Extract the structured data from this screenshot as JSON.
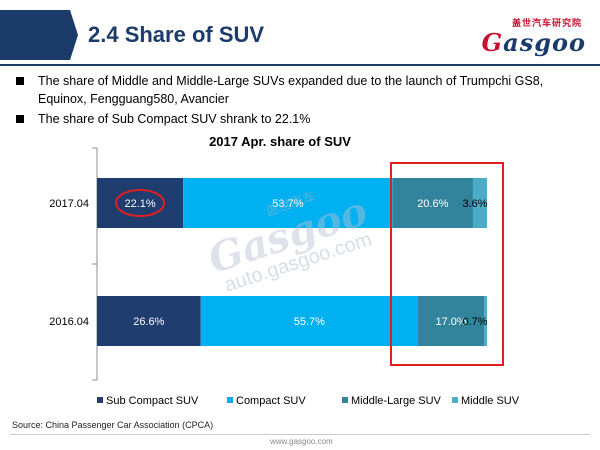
{
  "header": {
    "title": "2.4 Share of SUV",
    "logo_cn": "盖世汽车研究院",
    "logo_word_red": "G",
    "logo_word_rest": "asgoo"
  },
  "bullets": [
    "The share of Middle and Middle-Large SUVs expanded due to the launch of Trumpchi GS8, Equinox, Fengguang580, Avancier",
    "The share of Sub Compact SUV shrank to 22.1%"
  ],
  "watermark": {
    "brand": "Gasgoo",
    "cn": "盖世汽车",
    "url": "auto.gasgoo.com"
  },
  "source": "Source: China Passenger Car Association (CPCA)",
  "footer_url": "www.gasgoo.com",
  "colors": {
    "navy": "#1b3c6b",
    "brand_red": "#c8102e",
    "highlight_red": "#e0201e"
  },
  "chart_data": {
    "type": "bar",
    "orientation": "horizontal",
    "stacked": true,
    "title": "2017 Apr. share of SUV",
    "categories": [
      "2017.04",
      "2016.04"
    ],
    "xlim": [
      0,
      100
    ],
    "unit": "%",
    "grid": false,
    "legend_position": "bottom",
    "series": [
      {
        "name": "Sub Compact SUV",
        "values": [
          22.1,
          26.6
        ],
        "labels": [
          "22.1%",
          "26.6%"
        ],
        "color": "#1f3d6e",
        "label_color": "#ffffff"
      },
      {
        "name": "Compact SUV",
        "values": [
          53.7,
          55.7
        ],
        "labels": [
          "53.7%",
          "55.7%"
        ],
        "color": "#00b0f0",
        "label_color": "#ffffff"
      },
      {
        "name": "Middle-Large SUV",
        "values": [
          20.6,
          17.0
        ],
        "labels": [
          "20.6%",
          "17.0%"
        ],
        "color": "#31849b",
        "label_color": "#ffffff"
      },
      {
        "name": "Middle SUV",
        "values": [
          3.6,
          0.7
        ],
        "labels": [
          "3.6%",
          "0.7%"
        ],
        "color": "#4bacc6",
        "label_color": "#000000"
      }
    ],
    "annotations": [
      {
        "type": "ellipse",
        "target": "22.1%",
        "color": "#e0201e"
      },
      {
        "type": "box",
        "target": "Middle-Large SUV and Middle SUV segments",
        "color": "#e0201e"
      }
    ]
  }
}
